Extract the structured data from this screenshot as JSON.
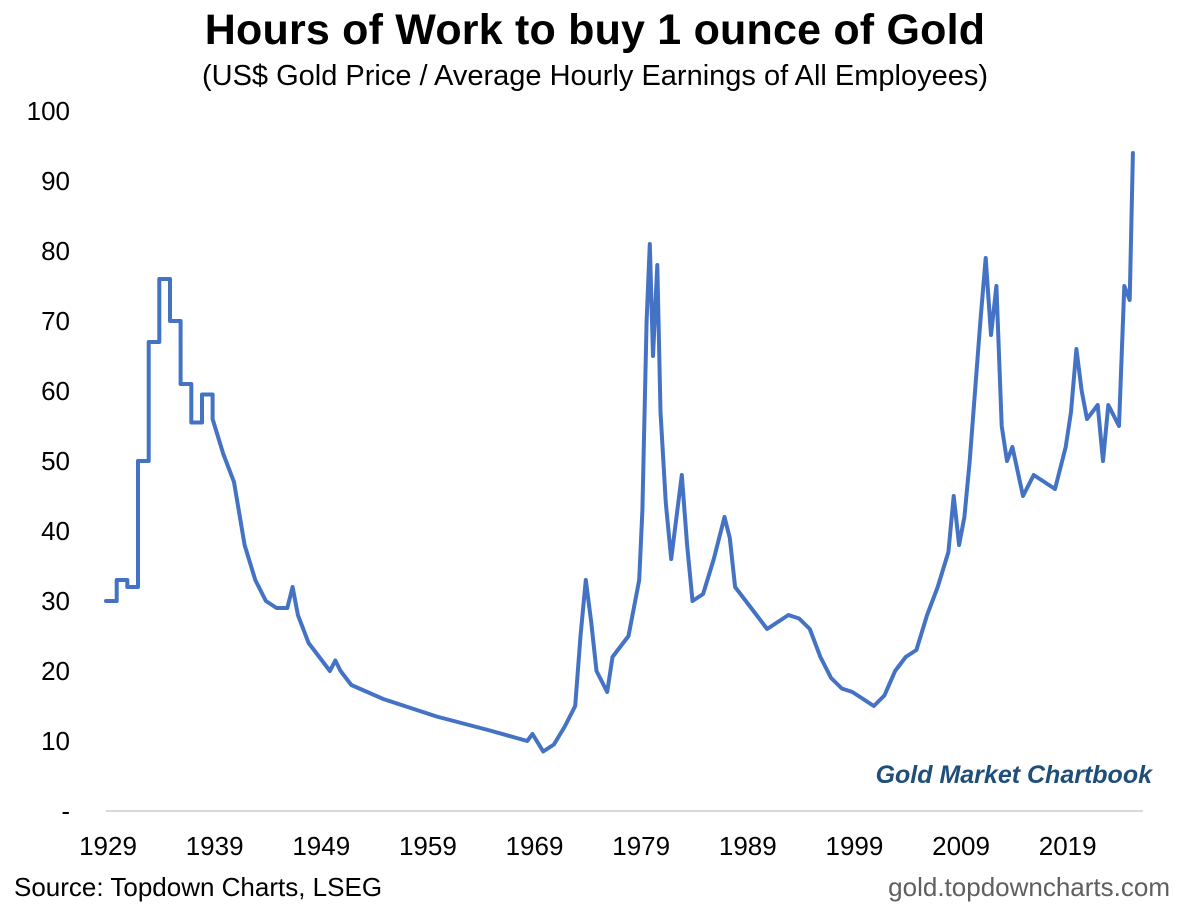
{
  "chart_data": {
    "type": "line",
    "title": "Hours of Work to buy 1 ounce of Gold",
    "subtitle": "(US$ Gold Price / Average Hourly Earnings of All Employees)",
    "xlabel": "",
    "ylabel": "",
    "ylim": [
      0,
      100
    ],
    "xlim": [
      1929,
      2025.5
    ],
    "y_ticks": [
      "-",
      "10",
      "20",
      "30",
      "40",
      "50",
      "60",
      "70",
      "80",
      "90",
      "100"
    ],
    "y_tick_values": [
      0,
      10,
      20,
      30,
      40,
      50,
      60,
      70,
      80,
      90,
      100
    ],
    "x_ticks": [
      "1929",
      "1939",
      "1949",
      "1959",
      "1969",
      "1979",
      "1989",
      "1999",
      "2009",
      "2019"
    ],
    "x_tick_values": [
      1929,
      1939,
      1949,
      1959,
      1969,
      1979,
      1989,
      1999,
      2009,
      2019
    ],
    "grid": false,
    "legend": "none",
    "colors": {
      "line": "#4472c4",
      "axis": "#d9d9d9",
      "watermark": "#1f4e79"
    },
    "series": [
      {
        "x": [
          1929,
          1930,
          1930,
          1931,
          1931,
          1932,
          1932,
          1933,
          1933,
          1934,
          1934,
          1935,
          1935,
          1936,
          1936,
          1937,
          1937,
          1938,
          1938,
          1939,
          1939,
          1940,
          1941,
          1942,
          1943,
          1944,
          1945,
          1946,
          1946.5,
          1947,
          1948,
          1949,
          1950,
          1950.5,
          1951,
          1952,
          1955,
          1960,
          1965,
          1968.5,
          1969,
          1970,
          1971,
          1972,
          1973,
          1973.5,
          1974,
          1974.5,
          1975,
          1976,
          1976.5,
          1977,
          1978,
          1979,
          1979.3,
          1979.7,
          1980,
          1980.3,
          1980.7,
          1981,
          1981.5,
          1982,
          1982.5,
          1983,
          1983.5,
          1984,
          1985,
          1986,
          1987,
          1987.5,
          1988,
          1989,
          1990,
          1991,
          1992,
          1993,
          1994,
          1995,
          1996,
          1997,
          1998,
          1999,
          2000,
          2001,
          2002,
          2003,
          2004,
          2005,
          2006,
          2007,
          2008,
          2008.5,
          2009,
          2009.5,
          2010,
          2011,
          2011.5,
          2012,
          2012.5,
          2013,
          2013.5,
          2014,
          2015,
          2016,
          2017,
          2018,
          2019,
          2019.5,
          2020,
          2020.5,
          2021,
          2022,
          2022.5,
          2023,
          2024,
          2024.5,
          2025,
          2025.3
        ],
        "y": [
          30,
          30,
          33,
          33,
          32,
          32,
          50,
          50,
          67,
          67,
          76,
          76,
          70,
          70,
          61,
          61,
          55.5,
          55.5,
          59.5,
          59.5,
          56,
          51,
          47,
          38,
          33,
          30,
          29,
          29,
          32,
          28,
          24,
          22,
          20,
          21.5,
          20,
          18,
          16,
          13.5,
          11.5,
          10,
          11,
          8.5,
          9.5,
          12,
          15,
          25,
          33,
          27,
          20,
          17,
          22,
          23,
          25,
          33,
          43,
          70,
          81,
          65,
          78,
          57,
          44,
          36,
          42,
          48,
          38,
          30,
          31,
          36,
          42,
          39,
          32,
          30,
          28,
          26,
          27,
          28,
          27.5,
          26,
          22,
          19,
          17.5,
          17,
          16,
          15,
          16.5,
          20,
          22,
          23,
          28,
          32,
          37,
          45,
          38,
          42,
          50,
          70,
          79,
          68,
          75,
          55,
          50,
          52,
          45,
          48,
          47,
          46,
          52,
          57,
          66,
          60,
          56,
          58,
          50,
          58,
          55,
          75,
          73,
          94
        ]
      }
    ]
  },
  "annotations": {
    "watermark": "Gold Market Chartbook",
    "source": "Source: Topdown Charts, LSEG",
    "site": "gold.topdowncharts.com"
  }
}
